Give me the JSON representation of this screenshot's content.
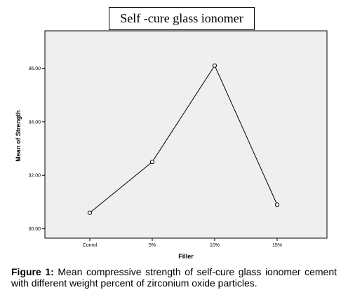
{
  "chart_data": {
    "type": "line",
    "title": "Self -cure glass ionomer",
    "xlabel": "Filler",
    "ylabel": "Mean of Strength",
    "categories": [
      "Conrol",
      "5%",
      "10%",
      "15%"
    ],
    "series": [
      {
        "values": [
          30.6,
          32.5,
          36.1,
          30.9
        ]
      }
    ],
    "ylim": [
      29.65,
      37.4
    ],
    "yticks": [
      30.0,
      32.0,
      34.0,
      36.0
    ],
    "ytick_labels": [
      "30.00",
      "32.00",
      "34.00",
      "36.00"
    ],
    "grid": false,
    "legend": "none",
    "colors": {
      "plot_background": "#efefef",
      "line": "#000000"
    }
  },
  "caption": {
    "label": "Figure 1:",
    "text": "Mean compressive strength of self-cure glass ionomer cement with different weight percent of zirconium oxide particles."
  }
}
